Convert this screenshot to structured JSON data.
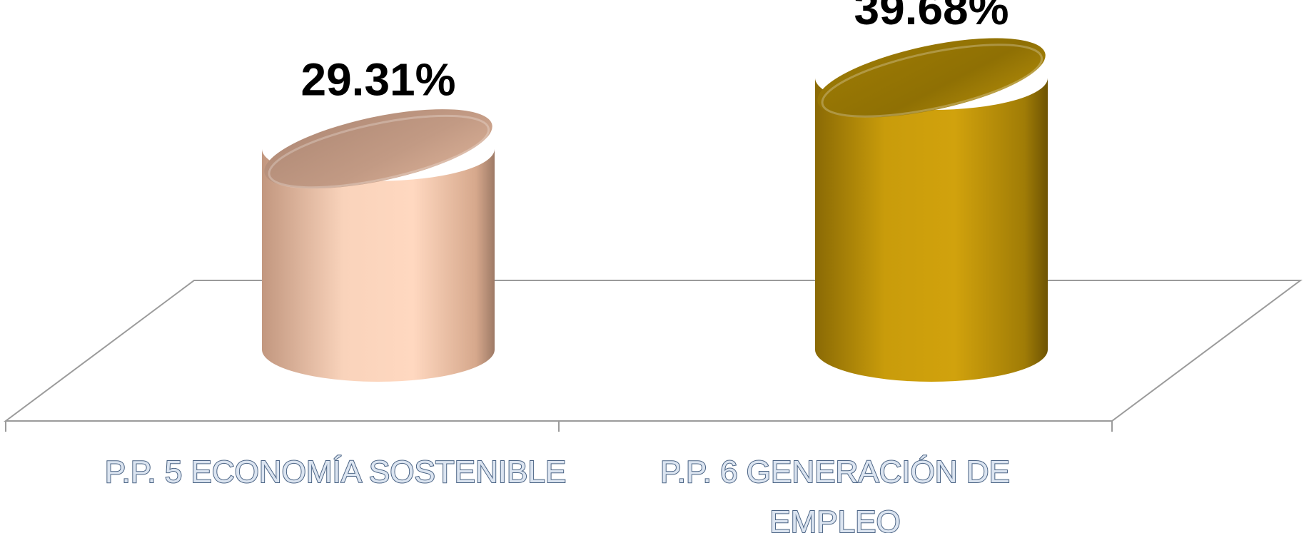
{
  "chart_data": {
    "type": "bar",
    "subtype": "3d-cylinder",
    "categories": [
      "P.P. 5 ECONOMÍA SOSTENIBLE",
      "P.P. 6 GENERACIÓN DE EMPLEO"
    ],
    "category_lines": [
      [
        "P.P. 5 ECONOMÍA SOSTENIBLE"
      ],
      [
        "P.P. 6 GENERACIÓN DE",
        "EMPLEO"
      ]
    ],
    "values": [
      29.31,
      39.68
    ],
    "data_labels": [
      "29.31%",
      "39.68%"
    ],
    "unit": "%",
    "colors": [
      "#f4c3a8",
      "#b8900a"
    ],
    "title": "",
    "xlabel": "",
    "ylabel": "",
    "ylim": [
      0,
      50
    ],
    "grid": false,
    "legend": "none"
  }
}
